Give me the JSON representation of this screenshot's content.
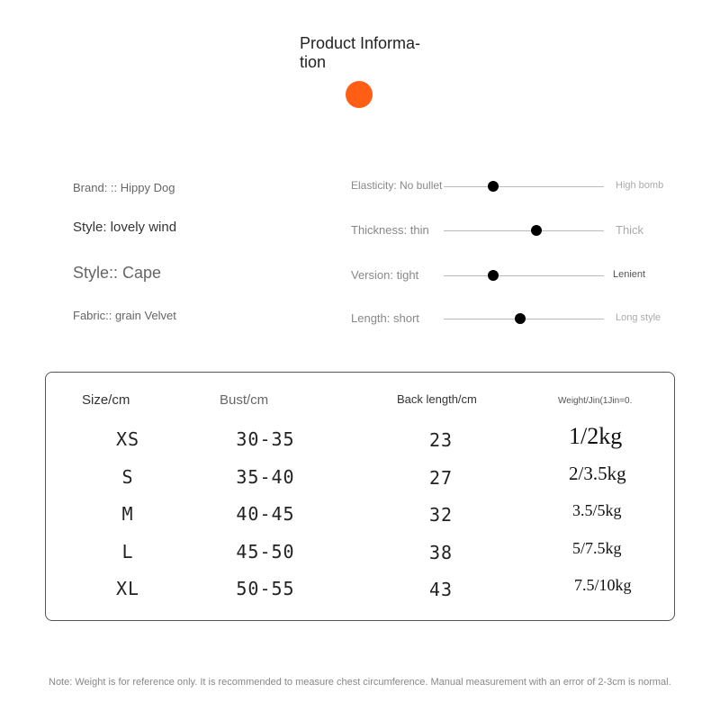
{
  "header": {
    "title": "Product Informa-tion",
    "accent_color": "#ff5e14"
  },
  "attributes": [
    {
      "text": "Brand: :: Hippy Dog"
    },
    {
      "text": "Style: lovely wind"
    },
    {
      "text": "Style:: Cape"
    },
    {
      "text": "Fabric:: grain Velvet"
    }
  ],
  "sliders": [
    {
      "left": "Elasticity: No bullet",
      "right": "High bomb",
      "value": 0.31
    },
    {
      "left": "Thickness: thin",
      "right": "Thick",
      "value": 0.58
    },
    {
      "left": "Version: tight",
      "right": "Lenient",
      "value": 0.31
    },
    {
      "left": "Length: short",
      "right": "Long style",
      "value": 0.48
    }
  ],
  "table": {
    "headers": [
      "Size/cm",
      "Bust/cm",
      "Back length/cm",
      "Weight/Jin(1Jin=0."
    ],
    "rows": [
      [
        "XS",
        "30-35",
        "23",
        "1/2kg"
      ],
      [
        "S",
        "35-40",
        "27",
        "2/3.5kg"
      ],
      [
        "M",
        "40-45",
        "32",
        "3.5/5kg"
      ],
      [
        "L",
        "45-50",
        "38",
        "5/7.5kg"
      ],
      [
        "XL",
        "50-55",
        "43",
        "7.5/10kg"
      ]
    ]
  },
  "note": "Note: Weight is for reference only. It is recommended to measure chest circumference. Manual measurement with an error of 2-3cm is normal."
}
